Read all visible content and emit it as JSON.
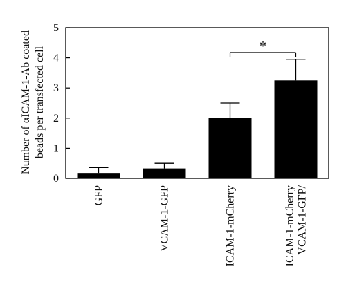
{
  "chart_data": {
    "type": "bar",
    "categories": [
      "GFP",
      "VCAM-1-GFP",
      "ICAM-1-mCherry",
      "VCAM-1-GFP/\nICAM-1-mCherry"
    ],
    "values": [
      0.18,
      0.33,
      2.0,
      3.25
    ],
    "error": [
      0.18,
      0.17,
      0.5,
      0.7
    ],
    "ylabel_lines": [
      "Number of αICAM-1-Ab coated",
      "beads per transfected cell"
    ],
    "ylim": [
      0,
      5
    ],
    "yticks": [
      "0",
      "1",
      "2",
      "3",
      "4",
      "5"
    ],
    "annotations": [
      {
        "text": "*",
        "from_category": 2,
        "to_category": 3
      }
    ],
    "grid": false,
    "bar_color": "#000000"
  }
}
